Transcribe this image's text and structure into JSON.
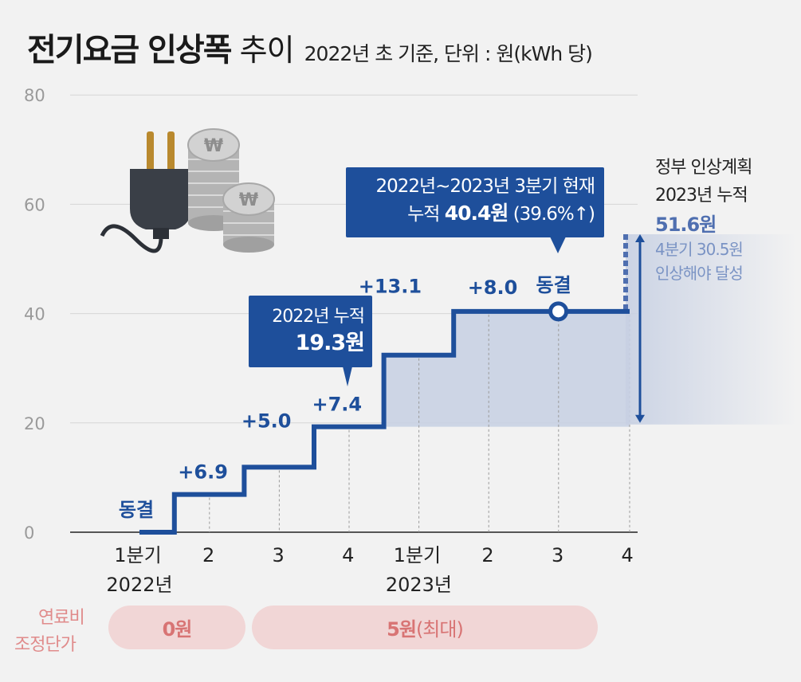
{
  "title": {
    "main": "전기요금 인상폭",
    "thin": "추이",
    "subtitle": "2022년 초 기준, 단위 : 원(kWh 당)"
  },
  "chart_data": {
    "type": "line",
    "step": true,
    "ylim": [
      0,
      80
    ],
    "yticks": [
      "0",
      "20",
      "40",
      "60",
      "80"
    ],
    "grid": true,
    "x_tick_labels": [
      "1분기",
      "2",
      "3",
      "4",
      "1분기",
      "2",
      "3",
      "4"
    ],
    "year_labels": [
      "2022년",
      "2023년"
    ],
    "series": [
      {
        "values": [
          0,
          6.9,
          11.9,
          19.3,
          32.4,
          40.4,
          40.4,
          40.4
        ]
      }
    ],
    "increments": [
      "동결",
      "+6.9",
      "+5.0",
      "+7.4",
      "+13.1",
      "+8.0",
      "동결"
    ],
    "government_plan_total": 51.6,
    "colors": {
      "line": "#1e4f9b",
      "fill": "#c7d0e3",
      "arrow": "#1e4f9b",
      "dashed": "#4f6fb0",
      "axis": "#999999"
    }
  },
  "callouts": {
    "y2022": {
      "line1": "2022년 누적",
      "line2": "19.3원"
    },
    "y2023": {
      "line1": "2022년~2023년 3분기 현재",
      "prefix": "누적 ",
      "value": "40.4원",
      "suffix": " (39.6%↑)"
    }
  },
  "gov_plan": {
    "line1": "정부 인상계획",
    "line2": "2023년 누적",
    "value": "51.6원",
    "line4": "4분기 30.5원",
    "line5": "인상해야 달성"
  },
  "fuel": {
    "label1": "연료비",
    "label2": "조정단가",
    "pill1": "0원",
    "pill2_value": "5원",
    "pill2_suffix": "(최대)"
  },
  "icons": [
    "plug-icon",
    "won-coins-icon"
  ]
}
